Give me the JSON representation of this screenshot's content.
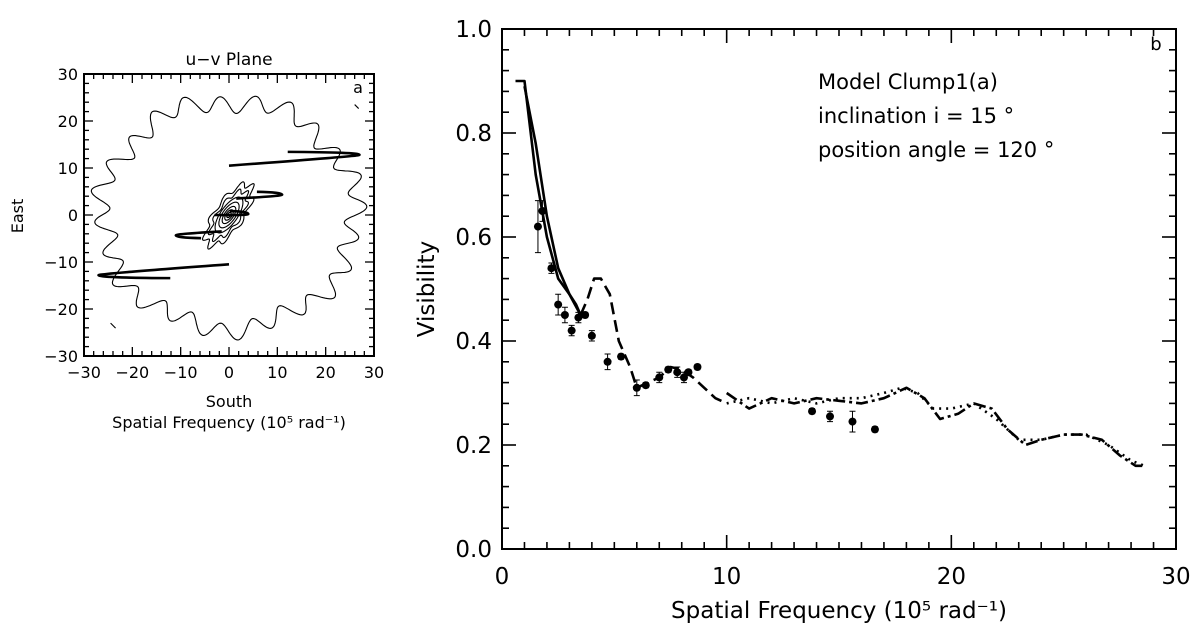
{
  "chart_data": [
    {
      "type": "contour",
      "panel_label": "a",
      "title": "u−v Plane",
      "xlabel": "South",
      "xlabel2": "Spatial Frequency (10⁵ rad⁻¹)",
      "ylabel": "East",
      "xlim": [
        -30,
        30
      ],
      "ylim": [
        -30,
        30
      ],
      "xticks": [
        "−30",
        "−20",
        "−10",
        "0",
        "10",
        "20",
        "30"
      ],
      "yticks": [
        "−30",
        "−20",
        "−10",
        "0",
        "10",
        "20",
        "30"
      ],
      "uv_tracks": [
        {
          "start": [
            0,
            10.5
          ],
          "end": [
            27,
            12.8
          ]
        },
        {
          "start": [
            0,
            -10.5
          ],
          "end": [
            -27,
            -12.8
          ]
        },
        {
          "start": [
            1.5,
            3.5
          ],
          "end": [
            11,
            4.3
          ]
        },
        {
          "start": [
            -1.5,
            -3.5
          ],
          "end": [
            -11,
            -4.3
          ]
        },
        {
          "start": [
            -3,
            0
          ],
          "end": [
            4,
            0.2
          ]
        }
      ]
    },
    {
      "type": "line",
      "panel_label": "b",
      "xlabel": "Spatial Frequency (10⁵ rad⁻¹)",
      "ylabel": "Visibility",
      "xlim": [
        0,
        30
      ],
      "ylim": [
        0,
        1.0
      ],
      "xticks": [
        "0",
        "10",
        "20",
        "30"
      ],
      "yticks": [
        "0.0",
        "0.2",
        "0.4",
        "0.6",
        "0.8",
        "1.0"
      ],
      "annotations": [
        "Model Clump1(a)",
        "inclination i = 15 °",
        "position angle = 120 °"
      ],
      "series": [
        {
          "style": "solid",
          "x": [
            0.6,
            1.0,
            1.5,
            2.0,
            2.5,
            3.0,
            3.5
          ],
          "y": [
            0.9,
            0.9,
            0.72,
            0.6,
            0.52,
            0.49,
            0.45
          ]
        },
        {
          "style": "solid",
          "x": [
            1.0,
            1.5,
            2.0,
            2.5,
            3.0,
            3.3,
            3.5
          ],
          "y": [
            0.89,
            0.78,
            0.64,
            0.54,
            0.49,
            0.47,
            0.45
          ]
        },
        {
          "style": "dashed",
          "x": [
            3.5,
            3.8,
            4.1,
            4.4,
            4.8,
            5.2,
            5.7,
            6.0,
            6.5,
            7.0,
            7.5,
            8.0,
            8.5,
            9.0,
            9.5,
            10.0
          ],
          "y": [
            0.45,
            0.48,
            0.52,
            0.52,
            0.49,
            0.4,
            0.35,
            0.31,
            0.32,
            0.33,
            0.35,
            0.345,
            0.33,
            0.31,
            0.29,
            0.28
          ]
        },
        {
          "style": "dash-dot",
          "x": [
            10.0,
            11.0,
            12.0,
            13.0,
            14.0,
            15.0,
            16.0,
            17.0,
            18.0,
            18.8,
            19.5,
            20.3,
            21.0,
            21.8,
            22.5,
            23.3,
            24.0,
            25.0,
            25.8,
            26.7,
            27.5,
            28.2,
            28.6
          ],
          "y": [
            0.3,
            0.27,
            0.29,
            0.28,
            0.29,
            0.285,
            0.28,
            0.29,
            0.31,
            0.29,
            0.25,
            0.26,
            0.28,
            0.27,
            0.23,
            0.2,
            0.21,
            0.22,
            0.22,
            0.21,
            0.18,
            0.16,
            0.16
          ]
        },
        {
          "style": "dotted",
          "x": [
            10.0,
            11.0,
            12.0,
            13.0,
            14.0,
            15.0,
            16.0,
            17.0,
            17.8,
            18.5,
            19.2,
            20.0,
            21.0,
            22.0,
            23.0,
            24.0,
            25.0,
            26.0,
            27.0,
            28.0,
            28.6
          ],
          "y": [
            0.28,
            0.29,
            0.28,
            0.29,
            0.28,
            0.29,
            0.29,
            0.3,
            0.31,
            0.3,
            0.27,
            0.27,
            0.28,
            0.25,
            0.21,
            0.21,
            0.22,
            0.22,
            0.2,
            0.17,
            0.16
          ]
        }
      ],
      "points": [
        {
          "x": 1.6,
          "y": 0.62,
          "err": 0.05
        },
        {
          "x": 1.8,
          "y": 0.65,
          "err": 0.02
        },
        {
          "x": 2.2,
          "y": 0.54,
          "err": 0.01
        },
        {
          "x": 2.5,
          "y": 0.47,
          "err": 0.02
        },
        {
          "x": 2.8,
          "y": 0.45,
          "err": 0.015
        },
        {
          "x": 3.1,
          "y": 0.42,
          "err": 0.01
        },
        {
          "x": 3.4,
          "y": 0.445,
          "err": 0.01
        },
        {
          "x": 3.7,
          "y": 0.45,
          "err": 0.005
        },
        {
          "x": 4.0,
          "y": 0.41,
          "err": 0.01
        },
        {
          "x": 4.7,
          "y": 0.36,
          "err": 0.015
        },
        {
          "x": 5.3,
          "y": 0.37,
          "err": 0.005
        },
        {
          "x": 6.0,
          "y": 0.31,
          "err": 0.015
        },
        {
          "x": 6.4,
          "y": 0.315,
          "err": 0.005
        },
        {
          "x": 7.0,
          "y": 0.33,
          "err": 0.01
        },
        {
          "x": 7.4,
          "y": 0.345,
          "err": 0.005
        },
        {
          "x": 7.8,
          "y": 0.34,
          "err": 0.01
        },
        {
          "x": 8.1,
          "y": 0.33,
          "err": 0.01
        },
        {
          "x": 8.3,
          "y": 0.34,
          "err": 0.005
        },
        {
          "x": 8.7,
          "y": 0.35,
          "err": 0.005
        },
        {
          "x": 13.8,
          "y": 0.265,
          "err": 0.005
        },
        {
          "x": 14.6,
          "y": 0.255,
          "err": 0.01
        },
        {
          "x": 15.6,
          "y": 0.245,
          "err": 0.02
        },
        {
          "x": 16.6,
          "y": 0.23,
          "err": 0.005
        }
      ]
    }
  ]
}
